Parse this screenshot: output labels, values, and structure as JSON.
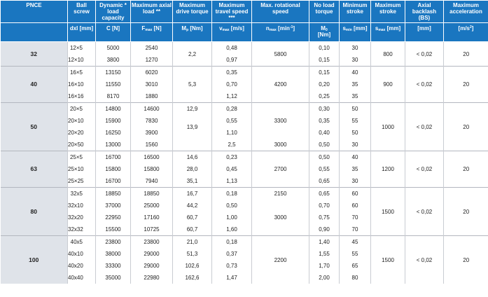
{
  "header": {
    "pnce": "PNCE",
    "ball_screw": "Ball screw",
    "dynamic_load": "Dynamic * load capacity",
    "max_axial_load": "Maximum axial load **",
    "max_drive_torque": "Maximum drive torque",
    "max_travel_speed": "Maximum travel speed ***",
    "max_rot_speed": "Max. rotational speed",
    "no_load_torque": "No load torque",
    "min_stroke": "Minimum stroke",
    "max_stroke": "Maximum stroke",
    "axial_backlash": "Axial backlash (BS)",
    "max_accel": "Maximum acceleration"
  },
  "units": {
    "ball_screw": "dxl [mm]",
    "dynamic_load": "C [N]",
    "max_axial_load_sym": "F",
    "max_axial_load_sub": "max",
    "max_axial_load_unit": " [N]",
    "drive_torque_sym": "M",
    "drive_torque_sub": "p",
    "drive_torque_unit": " [Nm]",
    "travel_speed_sym": "v",
    "travel_speed_sub": "max",
    "travel_speed_unit": " [m/s]",
    "rot_speed_sym": "n",
    "rot_speed_sub": "max",
    "rot_speed_unit": " [min",
    "rot_speed_sup": "-1",
    "rot_speed_close": "]",
    "no_load_sym": "M",
    "no_load_sub": "0",
    "no_load_unit": "[Nm]",
    "min_stroke_sym": "s",
    "min_stroke_sub": "min",
    "min_stroke_unit": " [mm]",
    "max_stroke_sym": "s",
    "max_stroke_sub": "max",
    "max_stroke_unit": " [mm]",
    "axial_backlash": "[mm]",
    "accel_unit": "[m/s",
    "accel_sup": "2",
    "accel_close": "]"
  },
  "groups": [
    {
      "size": "32",
      "max_stroke": "800",
      "backlash": "< 0,02",
      "accel": "20",
      "rows": [
        {
          "screw": "12×5",
          "c": "5000",
          "fmax": "2540",
          "vmax": "0,48",
          "m0": "0,10",
          "smin": "30"
        },
        {
          "screw": "12×10",
          "c": "3800",
          "fmax": "1270",
          "vmax": "0,97",
          "m0": "0,15",
          "smin": "30"
        }
      ],
      "torque_groups": [
        {
          "value": "2,2"
        }
      ],
      "rpm_groups": [
        {
          "value": "5800"
        }
      ]
    },
    {
      "size": "40",
      "max_stroke": "900",
      "backlash": "< 0,02",
      "accel": "20",
      "rows": [
        {
          "screw": "16×5",
          "c": "13150",
          "fmax": "6020",
          "vmax": "0,35",
          "m0": "0,15",
          "smin": "40"
        },
        {
          "screw": "16×10",
          "c": "11550",
          "fmax": "3010",
          "vmax": "0,70",
          "m0": "0,20",
          "smin": "35"
        },
        {
          "screw": "16×16",
          "c": "8170",
          "fmax": "1880",
          "vmax": "1,12",
          "m0": "0,25",
          "smin": "35"
        }
      ],
      "torque_groups": [
        {
          "value": "5,3"
        }
      ],
      "rpm_groups": [
        {
          "value": "4200"
        }
      ]
    },
    {
      "size": "50",
      "max_stroke": "1000",
      "backlash": "< 0,02",
      "accel": "20",
      "rows": [
        {
          "screw": "20×5",
          "c": "14800",
          "fmax": "14600",
          "vmax": "0,28",
          "m0": "0,30",
          "smin": "50"
        },
        {
          "screw": "20×10",
          "c": "15900",
          "fmax": "7830",
          "vmax": "0,55",
          "m0": "0,35",
          "smin": "55"
        },
        {
          "screw": "20×20",
          "c": "16250",
          "fmax": "3900",
          "vmax": "1,10",
          "m0": "0,40",
          "smin": "50"
        },
        {
          "screw": "20×50",
          "c": "13000",
          "fmax": "1560",
          "vmax": "2,5",
          "m0": "0,50",
          "smin": "30"
        }
      ],
      "torque_groups": [
        {
          "value": "12,9"
        },
        {
          "value": "13,9"
        },
        {
          "value": ""
        }
      ],
      "rpm_groups": [
        {
          "value": "3300"
        },
        {
          "value": "3000"
        }
      ]
    },
    {
      "size": "63",
      "max_stroke": "1200",
      "backlash": "< 0,02",
      "accel": "20",
      "rows": [
        {
          "screw": "25×5",
          "c": "16700",
          "fmax": "16500",
          "torque": "14,6",
          "vmax": "0,23",
          "m0": "0,50",
          "smin": "40"
        },
        {
          "screw": "25×10",
          "c": "15800",
          "fmax": "15800",
          "torque": "28,0",
          "vmax": "0,45",
          "m0": "0,55",
          "smin": "35"
        },
        {
          "screw": "25×25",
          "c": "16700",
          "fmax": "7940",
          "torque": "35,1",
          "vmax": "1,13",
          "m0": "0,65",
          "smin": "30"
        }
      ],
      "rpm_groups": [
        {
          "value": "2700"
        }
      ]
    },
    {
      "size": "80",
      "max_stroke": "1500",
      "backlash": "< 0,02",
      "accel": "20",
      "rows": [
        {
          "screw": "32x5",
          "c": "18850",
          "fmax": "18850",
          "torque": "16,7",
          "vmax": "0,18",
          "m0": "0,65",
          "smin": "60"
        },
        {
          "screw": "32x10",
          "c": "37000",
          "fmax": "25000",
          "torque": "44,2",
          "vmax": "0,50",
          "m0": "0,70",
          "smin": "60"
        },
        {
          "screw": "32x20",
          "c": "22950",
          "fmax": "17160",
          "torque": "60,7",
          "vmax": "1,00",
          "m0": "0,75",
          "smin": "70"
        },
        {
          "screw": "32x32",
          "c": "15500",
          "fmax": "10725",
          "torque": "60,7",
          "vmax": "1,60",
          "m0": "0,90",
          "smin": "70"
        }
      ],
      "rpm_groups": [
        {
          "value": "2150"
        },
        {
          "value": "3000"
        }
      ]
    },
    {
      "size": "100",
      "max_stroke": "1500",
      "backlash": "< 0,02",
      "accel": "20",
      "rows": [
        {
          "screw": "40x5",
          "c": "23800",
          "fmax": "23800",
          "torque": "21,0",
          "vmax": "0,18",
          "m0": "1,40",
          "smin": "45"
        },
        {
          "screw": "40x10",
          "c": "38000",
          "fmax": "29000",
          "torque": "51,3",
          "vmax": "0,37",
          "m0": "1,55",
          "smin": "55"
        },
        {
          "screw": "40x20",
          "c": "33300",
          "fmax": "29000",
          "torque": "102,6",
          "vmax": "0,73",
          "m0": "1,70",
          "smin": "65"
        },
        {
          "screw": "40x40",
          "c": "35000",
          "fmax": "22980",
          "torque": "162,6",
          "vmax": "1,47",
          "m0": "2,00",
          "smin": "80"
        }
      ],
      "rpm_groups": [
        {
          "value": "2200"
        }
      ]
    }
  ]
}
